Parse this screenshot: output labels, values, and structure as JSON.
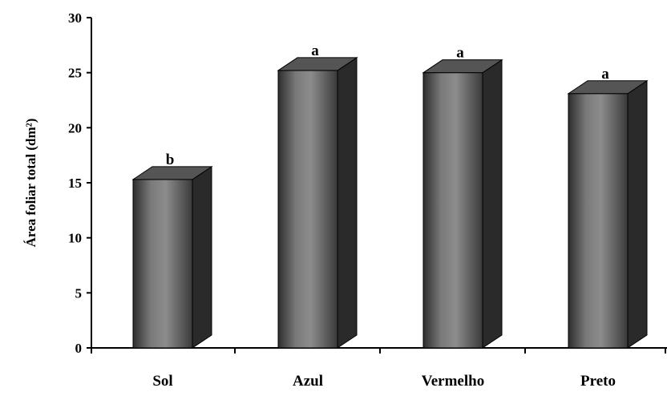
{
  "chart_data": {
    "type": "bar",
    "style": "3d-column",
    "categories": [
      "Sol",
      "Azul",
      "Vermelho",
      "Preto"
    ],
    "values": [
      15.3,
      25.2,
      25.0,
      23.1
    ],
    "annotations": [
      "b",
      "a",
      "a",
      "a"
    ],
    "ylabel": "Área foliar total (dm²)",
    "xlabel": "",
    "title": "",
    "ylim": [
      0,
      30
    ],
    "yticks": [
      "0",
      "5",
      "10",
      "15",
      "20",
      "25",
      "30"
    ],
    "grid": false,
    "legend": "none",
    "colors": {
      "bar_front_light": "#8a8a8a",
      "bar_front_dark": "#333333",
      "bar_top": "#555555",
      "bar_side": "#2a2a2a",
      "axis": "#000000"
    }
  }
}
